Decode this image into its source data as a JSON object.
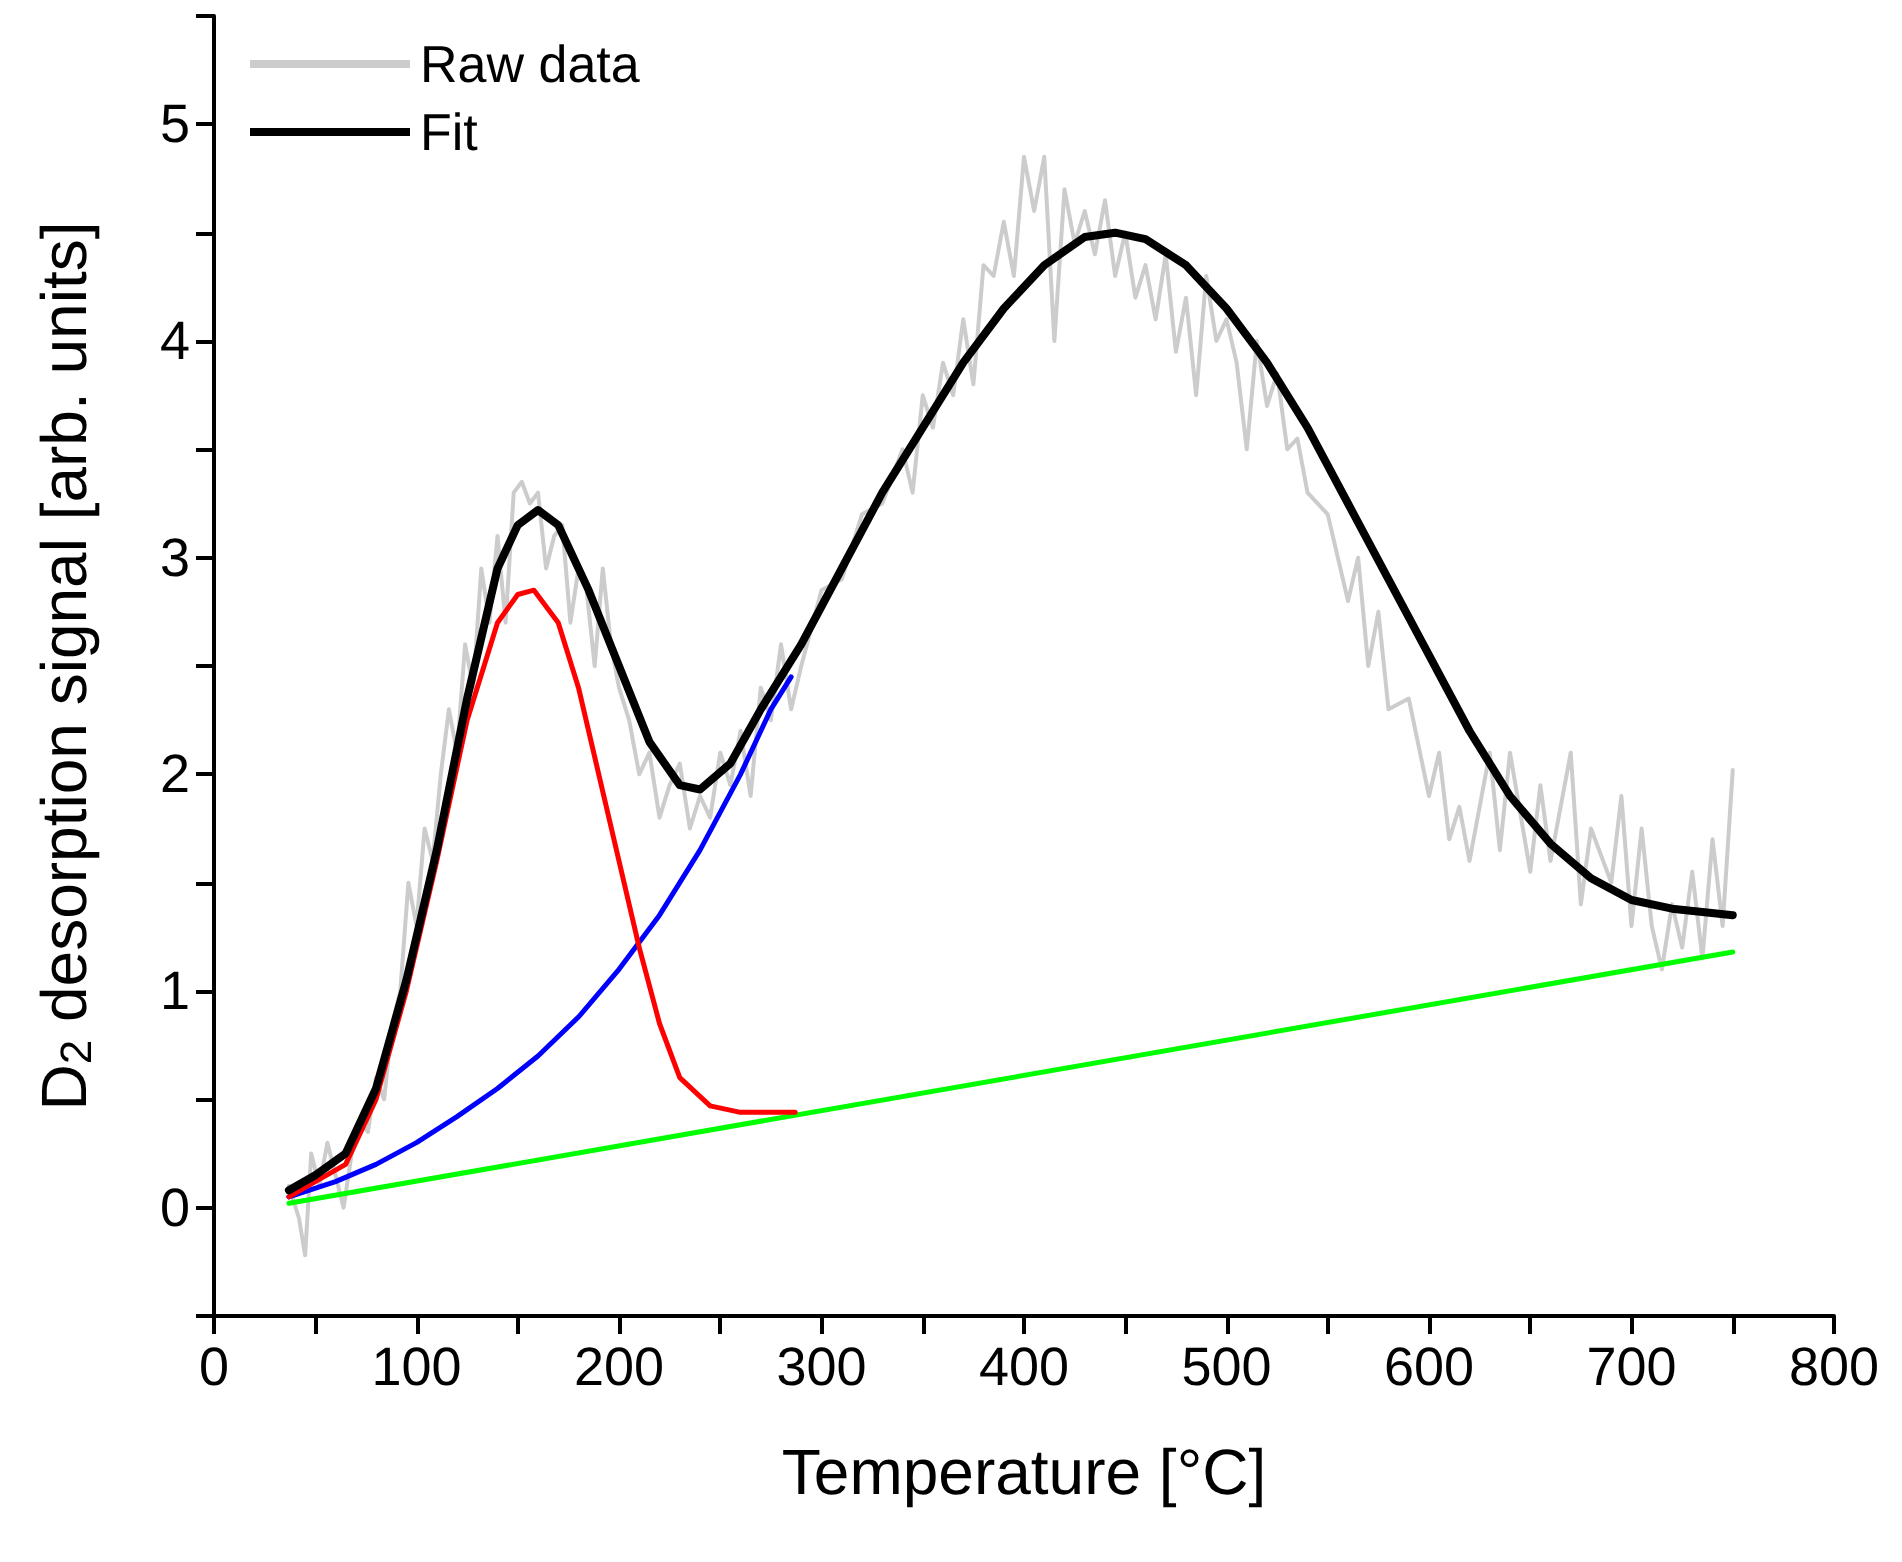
{
  "chart_data": {
    "type": "line",
    "xlabel": "Temperature [°C]",
    "ylabel": "D$_{2}$ desorption signal [arb. units]",
    "xlim": [
      0,
      800
    ],
    "xticks": [
      0,
      {
        "value": 50,
        "label": null
      },
      100,
      {
        "value": 150,
        "label": null
      },
      200,
      {
        "value": 250,
        "label": null
      },
      300,
      {
        "value": 350,
        "label": null
      },
      400,
      {
        "value": 450,
        "label": null
      },
      500,
      {
        "value": 550,
        "label": null
      },
      600,
      {
        "value": 650,
        "label": null
      },
      700,
      {
        "value": 750,
        "label": null
      },
      800
    ],
    "ylim": [
      -0.5,
      5.5
    ],
    "yticks": [
      {
        "value": -0.5,
        "label": null
      },
      0,
      {
        "value": 0.5,
        "label": null
      },
      1,
      {
        "value": 1.5,
        "label": null
      },
      2,
      {
        "value": 2.5,
        "label": null
      },
      3,
      {
        "value": 3.5,
        "label": null
      },
      4,
      {
        "value": 4.5,
        "label": null
      },
      5,
      {
        "value": 5.5,
        "label": null
      }
    ],
    "grid": false,
    "legend": "top left",
    "marker": "none",
    "line_style": "solid",
    "series": [
      {
        "name": "Raw data",
        "color": "#cccccc",
        "x": [
          37,
          42,
          45,
          48,
          52,
          56,
          60,
          64,
          68,
          72,
          76,
          80,
          84,
          88,
          92,
          96,
          100,
          104,
          108,
          112,
          116,
          120,
          124,
          128,
          132,
          136,
          140,
          144,
          148,
          152,
          156,
          160,
          164,
          168,
          172,
          176,
          180,
          184,
          188,
          192,
          196,
          200,
          205,
          210,
          215,
          220,
          225,
          230,
          235,
          240,
          245,
          250,
          255,
          260,
          265,
          270,
          275,
          280,
          285,
          290,
          300,
          310,
          320,
          330,
          340,
          345,
          350,
          355,
          360,
          365,
          370,
          375,
          380,
          385,
          390,
          395,
          400,
          405,
          410,
          415,
          420,
          425,
          430,
          435,
          440,
          445,
          450,
          455,
          460,
          465,
          470,
          475,
          480,
          485,
          490,
          495,
          500,
          505,
          510,
          515,
          520,
          525,
          530,
          535,
          540,
          550,
          560,
          565,
          570,
          575,
          580,
          590,
          600,
          605,
          610,
          615,
          620,
          630,
          635,
          640,
          650,
          655,
          660,
          670,
          675,
          680,
          690,
          695,
          700,
          705,
          710,
          715,
          720,
          725,
          730,
          735,
          740,
          745,
          750
        ],
        "values": [
          0.1,
          -0.05,
          -0.22,
          0.25,
          0.1,
          0.3,
          0.15,
          0.0,
          0.25,
          0.4,
          0.35,
          0.6,
          0.5,
          0.85,
          1.0,
          1.5,
          1.3,
          1.75,
          1.6,
          2.0,
          2.3,
          2.1,
          2.6,
          2.4,
          2.95,
          2.7,
          3.1,
          2.7,
          3.3,
          3.35,
          3.25,
          3.3,
          2.95,
          3.1,
          3.15,
          2.7,
          2.95,
          2.85,
          2.5,
          2.95,
          2.6,
          2.4,
          2.25,
          2.0,
          2.1,
          1.8,
          1.95,
          2.05,
          1.75,
          1.9,
          1.8,
          2.1,
          1.95,
          2.2,
          1.9,
          2.4,
          2.25,
          2.6,
          2.3,
          2.5,
          2.85,
          2.9,
          3.2,
          3.25,
          3.5,
          3.3,
          3.75,
          3.6,
          3.9,
          3.75,
          4.1,
          3.8,
          4.35,
          4.3,
          4.55,
          4.3,
          4.85,
          4.6,
          4.85,
          4.0,
          4.7,
          4.45,
          4.6,
          4.4,
          4.65,
          4.3,
          4.5,
          4.2,
          4.35,
          4.1,
          4.4,
          3.95,
          4.2,
          3.75,
          4.3,
          4.0,
          4.1,
          3.9,
          3.5,
          4.0,
          3.7,
          3.85,
          3.5,
          3.55,
          3.3,
          3.2,
          2.8,
          3.0,
          2.5,
          2.75,
          2.3,
          2.35,
          1.9,
          2.1,
          1.7,
          1.85,
          1.6,
          2.1,
          1.65,
          2.1,
          1.55,
          1.95,
          1.6,
          2.1,
          1.4,
          1.75,
          1.5,
          1.9,
          1.3,
          1.75,
          1.3,
          1.1,
          1.4,
          1.2,
          1.55,
          1.15,
          1.7,
          1.3,
          2.02
        ]
      },
      {
        "color": "#00ff00",
        "x": [
          37,
          750
        ],
        "values": [
          0.02,
          1.18
        ]
      },
      {
        "color": "#0000ff",
        "x": [
          37,
          60,
          80,
          100,
          120,
          140,
          160,
          180,
          200,
          220,
          240,
          260,
          275,
          285
        ],
        "values": [
          0.05,
          0.12,
          0.2,
          0.3,
          0.42,
          0.55,
          0.7,
          0.88,
          1.1,
          1.35,
          1.65,
          2.0,
          2.3,
          2.45
        ]
      },
      {
        "color": "#ff0000",
        "x": [
          37,
          50,
          65,
          80,
          95,
          110,
          125,
          140,
          150,
          158,
          170,
          180,
          190,
          200,
          210,
          220,
          230,
          245,
          260,
          287
        ],
        "values": [
          0.05,
          0.12,
          0.2,
          0.5,
          1.0,
          1.6,
          2.25,
          2.7,
          2.83,
          2.85,
          2.7,
          2.4,
          2.0,
          1.6,
          1.2,
          0.85,
          0.6,
          0.47,
          0.44,
          0.44
        ]
      },
      {
        "name": "Fit",
        "color": "#000000",
        "x": [
          37,
          50,
          65,
          80,
          95,
          110,
          125,
          140,
          150,
          160,
          170,
          185,
          200,
          215,
          230,
          240,
          255,
          270,
          290,
          310,
          330,
          350,
          370,
          390,
          410,
          430,
          445,
          460,
          480,
          500,
          520,
          540,
          560,
          580,
          600,
          620,
          640,
          660,
          680,
          700,
          720,
          750
        ],
        "values": [
          0.08,
          0.15,
          0.25,
          0.55,
          1.05,
          1.65,
          2.35,
          2.95,
          3.15,
          3.22,
          3.15,
          2.85,
          2.5,
          2.15,
          1.95,
          1.93,
          2.05,
          2.3,
          2.6,
          2.95,
          3.3,
          3.6,
          3.9,
          4.15,
          4.35,
          4.48,
          4.5,
          4.47,
          4.35,
          4.15,
          3.9,
          3.6,
          3.25,
          2.9,
          2.55,
          2.2,
          1.9,
          1.68,
          1.52,
          1.42,
          1.38,
          1.35
        ]
      }
    ]
  }
}
